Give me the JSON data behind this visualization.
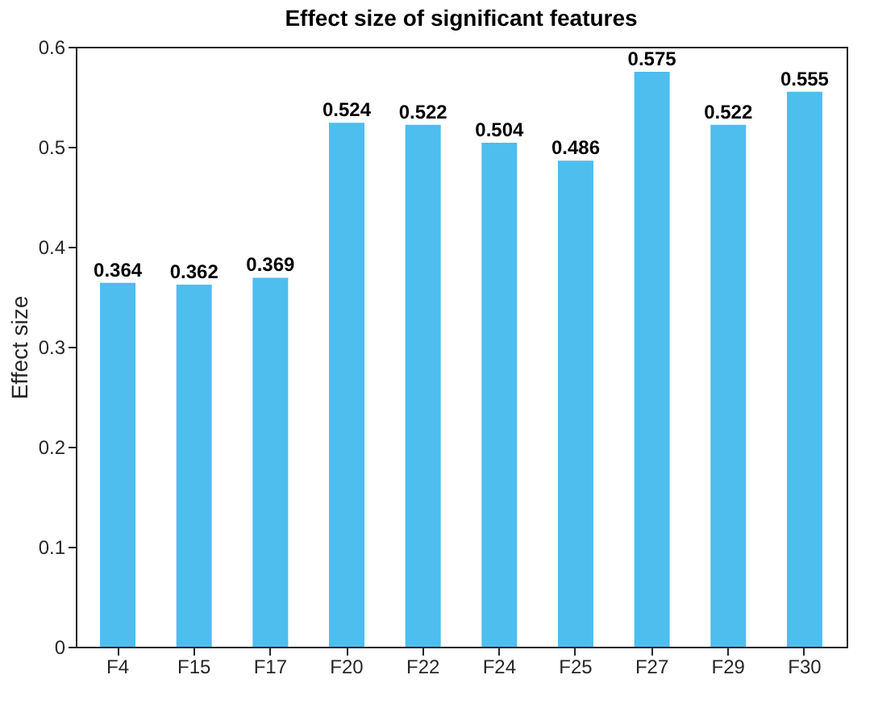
{
  "chart_data": {
    "type": "bar",
    "title": "Effect size of significant features",
    "ylabel": "Effect size",
    "categories": [
      "F4",
      "F15",
      "F17",
      "F20",
      "F22",
      "F24",
      "F25",
      "F27",
      "F29",
      "F30"
    ],
    "values": [
      0.364,
      0.362,
      0.369,
      0.524,
      0.522,
      0.504,
      0.486,
      0.575,
      0.522,
      0.555
    ],
    "color": "#4dbeee",
    "ylim": [
      0,
      0.6
    ],
    "yticks": [
      0,
      0.1,
      0.2,
      0.3,
      0.4,
      0.5,
      0.6
    ],
    "grid": false,
    "data_labels": true
  }
}
